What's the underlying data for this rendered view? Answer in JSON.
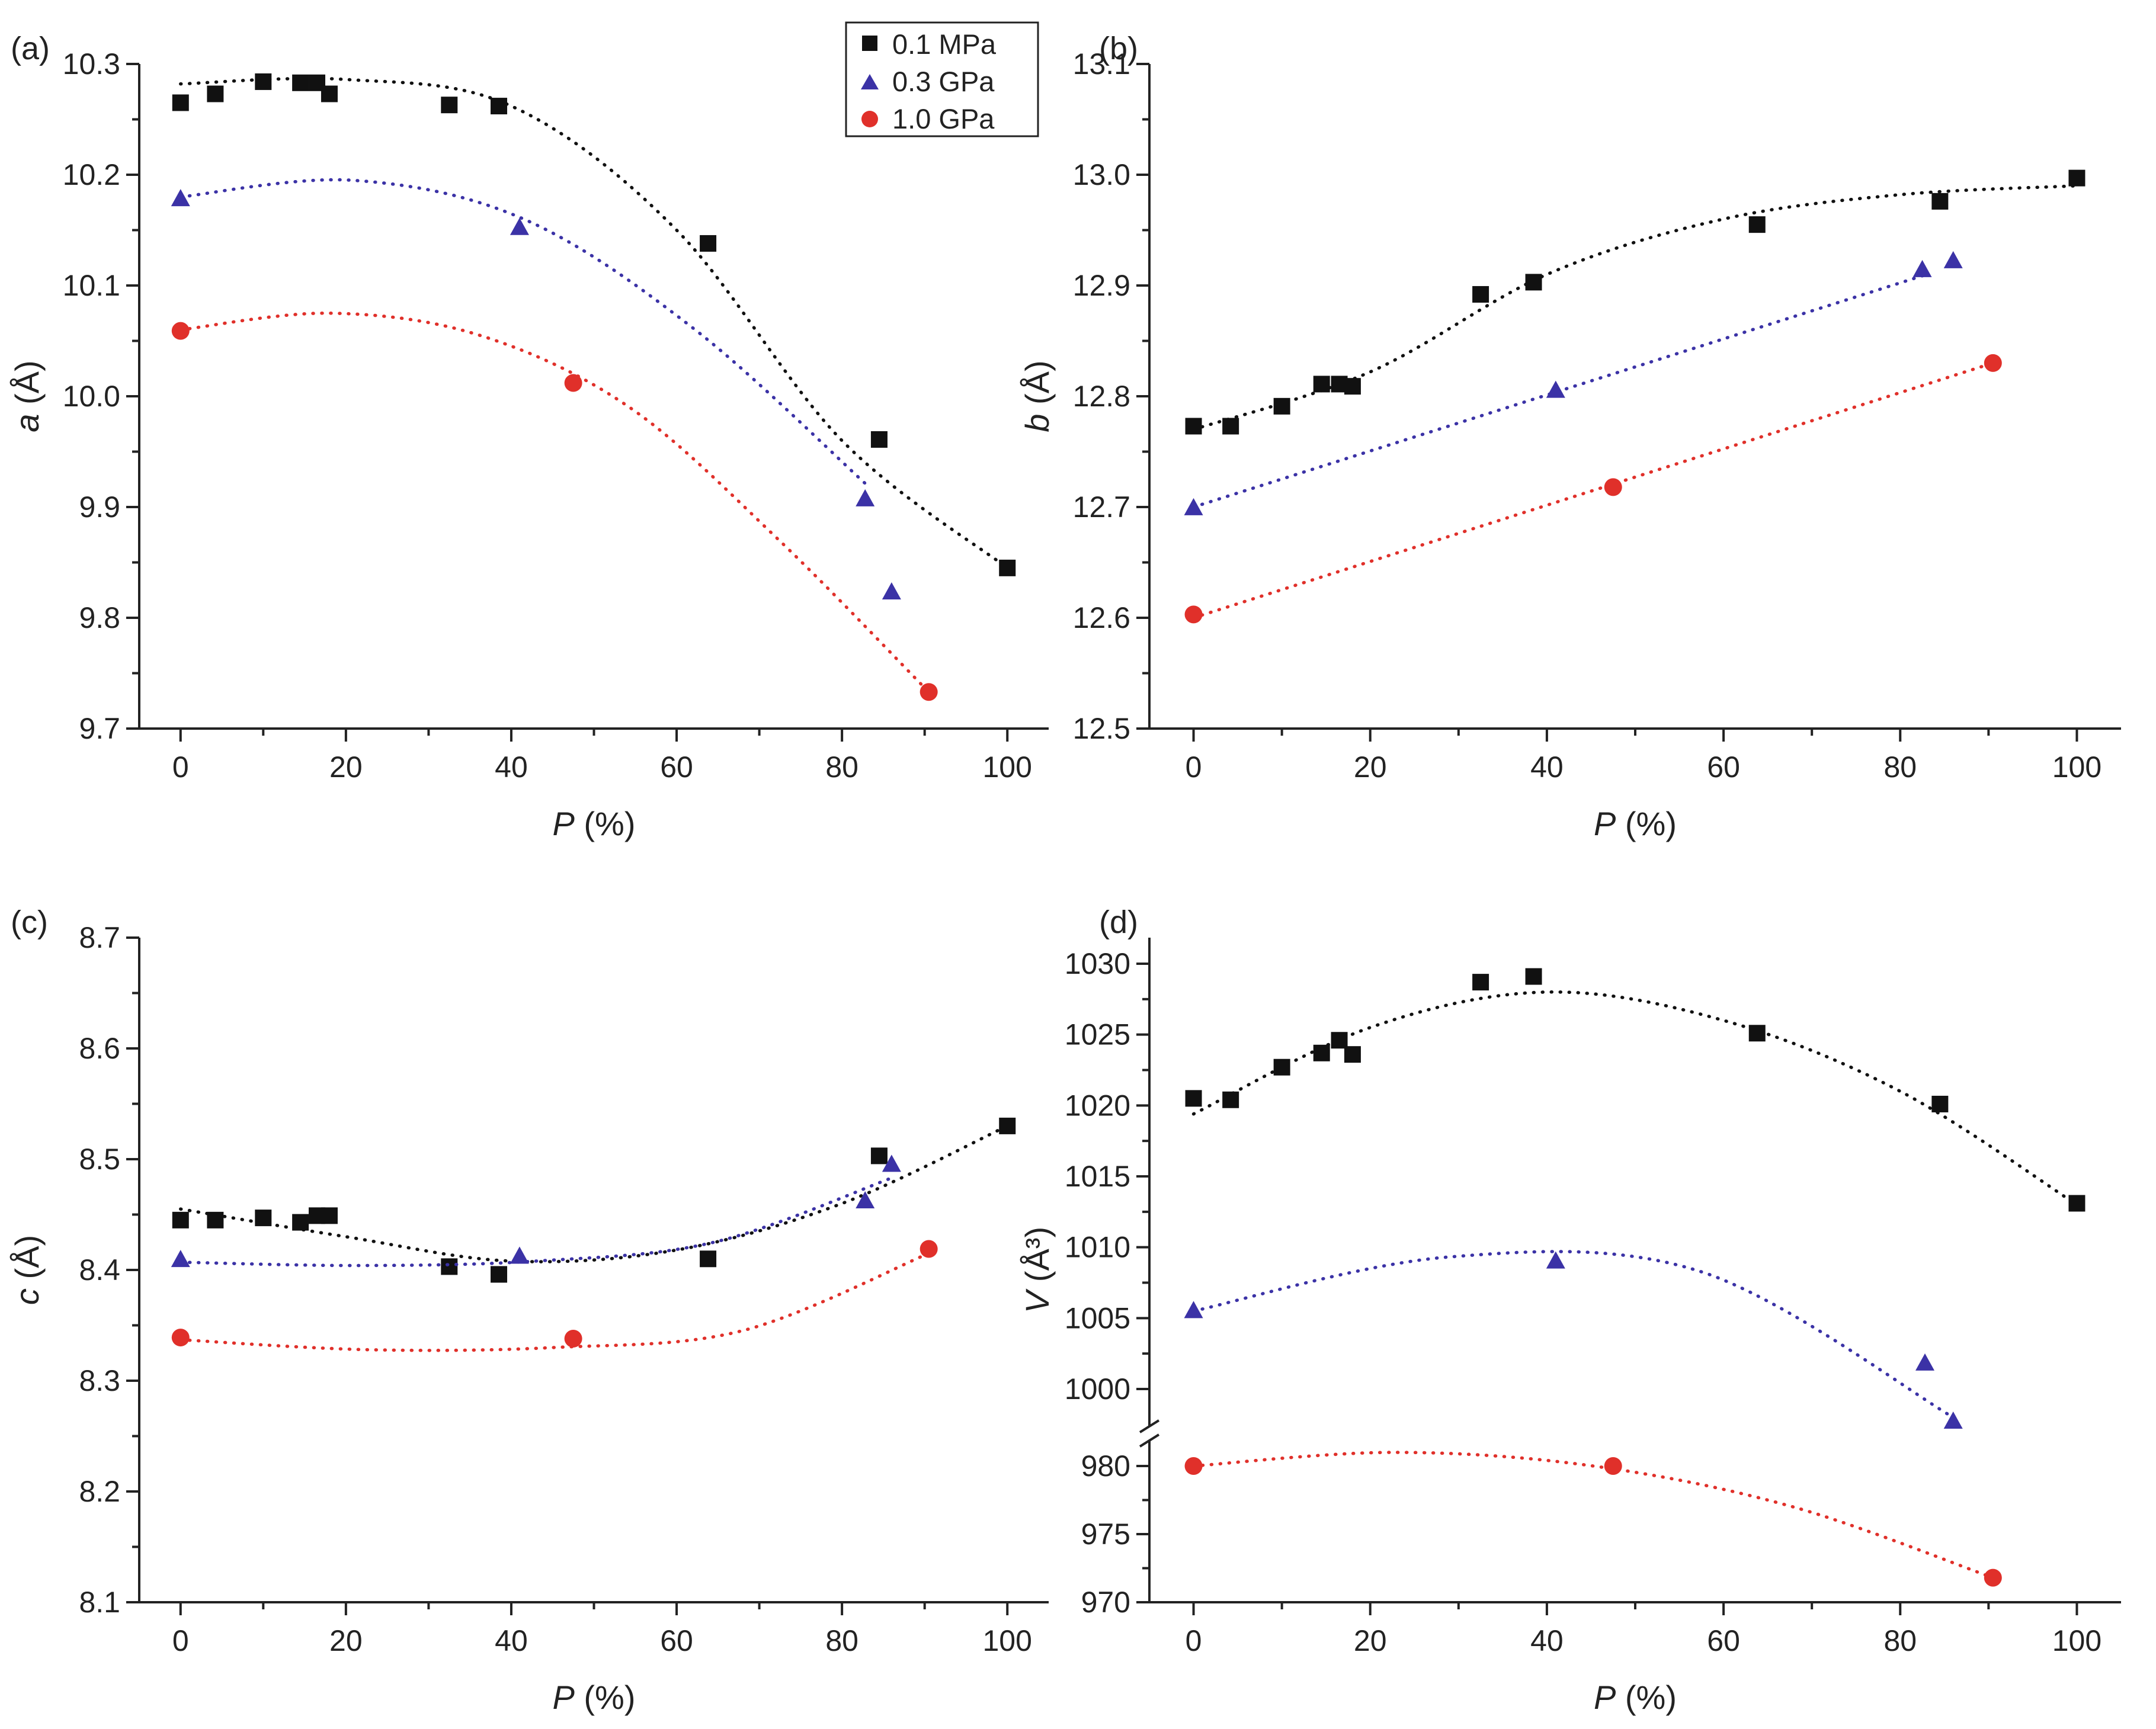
{
  "colors": {
    "black": "#111111",
    "blue": "#3b32a6",
    "red": "#e0302a"
  },
  "legend": {
    "series": [
      {
        "name": "0.1 MPa",
        "marker": "square",
        "color": "#111111"
      },
      {
        "name": "0.3 GPa",
        "marker": "triangle",
        "color": "#3b32a6"
      },
      {
        "name": "1.0 GPa",
        "marker": "circle",
        "color": "#e0302a"
      }
    ]
  },
  "chart_data": [
    {
      "type": "scatter",
      "panel": "(a)",
      "xlabel": {
        "italic": "P",
        "rest": " (%)"
      },
      "ylabel": {
        "italic": "a",
        "rest": " (Å)"
      },
      "xlim": [
        -5,
        105
      ],
      "ylim": [
        9.7,
        10.3
      ],
      "xticks": [
        0,
        20,
        40,
        60,
        80,
        100
      ],
      "yticks": [
        9.7,
        9.8,
        9.9,
        10.0,
        10.1,
        10.2,
        10.3
      ],
      "ytick_labels": [
        "9.7",
        "9.8",
        "9.9",
        "10.0",
        "10.1",
        "10.2",
        "10.3"
      ],
      "series": [
        {
          "name": "0.1 MPa",
          "x": [
            0,
            4.2,
            10,
            14.5,
            16.5,
            18,
            32.5,
            38.5,
            63.8,
            84.5,
            100
          ],
          "y": [
            10.265,
            10.273,
            10.284,
            10.283,
            10.283,
            10.273,
            10.263,
            10.262,
            10.138,
            9.961,
            9.845
          ],
          "fit": [
            0,
            100,
            10.282,
            10.286,
            10.262,
            10.15,
            9.96,
            9.845
          ]
        },
        {
          "name": "0.3 GPa",
          "x": [
            0,
            41,
            82.8,
            86
          ],
          "y": [
            10.178,
            10.152,
            9.907,
            9.823
          ],
          "fit": [
            0,
            83,
            10.18,
            10.195,
            10.16,
            10.06,
            9.92
          ]
        },
        {
          "name": "1.0 GPa",
          "x": [
            0,
            47.5,
            90.5
          ],
          "y": [
            10.059,
            10.012,
            9.733
          ],
          "fit": [
            0,
            90.5,
            10.06,
            10.075,
            10.055,
            9.99,
            9.87,
            9.733
          ]
        }
      ]
    },
    {
      "type": "scatter",
      "panel": "(b)",
      "xlabel": {
        "italic": "P",
        "rest": " (%)"
      },
      "ylabel": {
        "italic": "b",
        "rest": " (Å)"
      },
      "xlim": [
        -5,
        105
      ],
      "ylim": [
        12.5,
        13.1
      ],
      "xticks": [
        0,
        20,
        40,
        60,
        80,
        100
      ],
      "yticks": [
        12.5,
        12.6,
        12.7,
        12.8,
        12.9,
        13.0,
        13.1
      ],
      "ytick_labels": [
        "12.5",
        "12.6",
        "12.7",
        "12.8",
        "12.9",
        "13.0",
        "13.1"
      ],
      "series": [
        {
          "name": "0.1 MPa",
          "x": [
            0,
            4.2,
            10,
            14.5,
            16.5,
            18,
            32.5,
            38.5,
            63.8,
            84.5,
            100
          ],
          "y": [
            12.773,
            12.773,
            12.791,
            12.811,
            12.811,
            12.809,
            12.892,
            12.903,
            12.955,
            12.976,
            12.997
          ],
          "fit": [
            0,
            100,
            12.77,
            12.822,
            12.91,
            12.96,
            12.982,
            12.99
          ]
        },
        {
          "name": "0.3 GPa",
          "x": [
            0,
            41,
            82.5,
            86
          ],
          "y": [
            12.699,
            12.805,
            12.914,
            12.922
          ],
          "fit": [
            0,
            83,
            12.7,
            12.91
          ]
        },
        {
          "name": "1.0 GPa",
          "x": [
            0,
            47.5,
            90.5
          ],
          "y": [
            12.603,
            12.718,
            12.83
          ],
          "fit": [
            0,
            90.5,
            12.6,
            12.83
          ]
        }
      ]
    },
    {
      "type": "scatter",
      "panel": "(c)",
      "xlabel": {
        "italic": "P",
        "rest": " (%)"
      },
      "ylabel": {
        "italic": "c",
        "rest": " (Å)"
      },
      "xlim": [
        -5,
        105
      ],
      "ylim": [
        8.1,
        8.7
      ],
      "xticks": [
        0,
        20,
        40,
        60,
        80,
        100
      ],
      "yticks": [
        8.1,
        8.2,
        8.3,
        8.4,
        8.5,
        8.6,
        8.7
      ],
      "ytick_labels": [
        "8.1",
        "8.2",
        "8.3",
        "8.4",
        "8.5",
        "8.6",
        "8.7"
      ],
      "series": [
        {
          "name": "0.1 MPa",
          "x": [
            0,
            4.2,
            10,
            14.5,
            16.5,
            18,
            32.5,
            38.5,
            63.8,
            84.5,
            100
          ],
          "y": [
            8.445,
            8.445,
            8.447,
            8.443,
            8.449,
            8.449,
            8.403,
            8.396,
            8.41,
            8.503,
            8.53
          ],
          "fit": [
            0,
            100,
            8.455,
            8.43,
            8.408,
            8.418,
            8.46,
            8.53
          ]
        },
        {
          "name": "0.3 GPa",
          "x": [
            0,
            41,
            82.8,
            86
          ],
          "y": [
            8.409,
            8.412,
            8.462,
            8.495
          ],
          "fit": [
            0,
            86,
            8.407,
            8.404,
            8.408,
            8.425,
            8.483
          ]
        },
        {
          "name": "1.0 GPa",
          "x": [
            0,
            47.5,
            90.5
          ],
          "y": [
            8.339,
            8.338,
            8.419
          ],
          "fit": [
            0,
            90.5,
            8.337,
            8.328,
            8.33,
            8.345,
            8.415
          ]
        }
      ]
    },
    {
      "type": "scatter",
      "panel": "(d)",
      "xlabel": {
        "italic": "P",
        "rest": " (%)"
      },
      "ylabel": {
        "italic": "V",
        "rest": " (Å³)"
      },
      "xlim": [
        -5,
        105
      ],
      "ylim": [
        970,
        1030
      ],
      "axis_break": "between 1000 and 980",
      "xticks": [
        0,
        20,
        40,
        60,
        80,
        100
      ],
      "yticks": [
        970,
        975,
        980,
        1000,
        1005,
        1010,
        1015,
        1020,
        1025,
        1030
      ],
      "ytick_labels": [
        "970",
        "975",
        "980",
        "1000",
        "1005",
        "1010",
        "1015",
        "1020",
        "1025",
        "1030"
      ],
      "series": [
        {
          "name": "0.1 MPa",
          "x": [
            0,
            4.2,
            10,
            14.5,
            16.5,
            18,
            32.5,
            38.5,
            63.8,
            84.5,
            100
          ],
          "y": [
            1020.5,
            1020.4,
            1022.7,
            1023.7,
            1024.6,
            1023.6,
            1028.7,
            1029.1,
            1025.1,
            1020.1,
            1013.1
          ],
          "fit": [
            0,
            100,
            1019.4,
            1025.5,
            1028.0,
            1026.0,
            1021.0,
            1013.0
          ]
        },
        {
          "name": "0.3 GPa",
          "x": [
            0,
            41,
            82.8,
            86
          ],
          "y": [
            1005.5,
            1009.0,
            1001.8,
            997.7
          ],
          "fit": [
            0,
            86,
            1005.5,
            1009.3,
            1008.3,
            998.0
          ]
        },
        {
          "name": "1.0 GPa",
          "x": [
            0,
            47.5,
            90.5
          ],
          "y": [
            980.0,
            980.0,
            971.8
          ],
          "fit": [
            0,
            90.5,
            980.0,
            981.0,
            980.0,
            977.0,
            971.8
          ]
        }
      ]
    }
  ]
}
